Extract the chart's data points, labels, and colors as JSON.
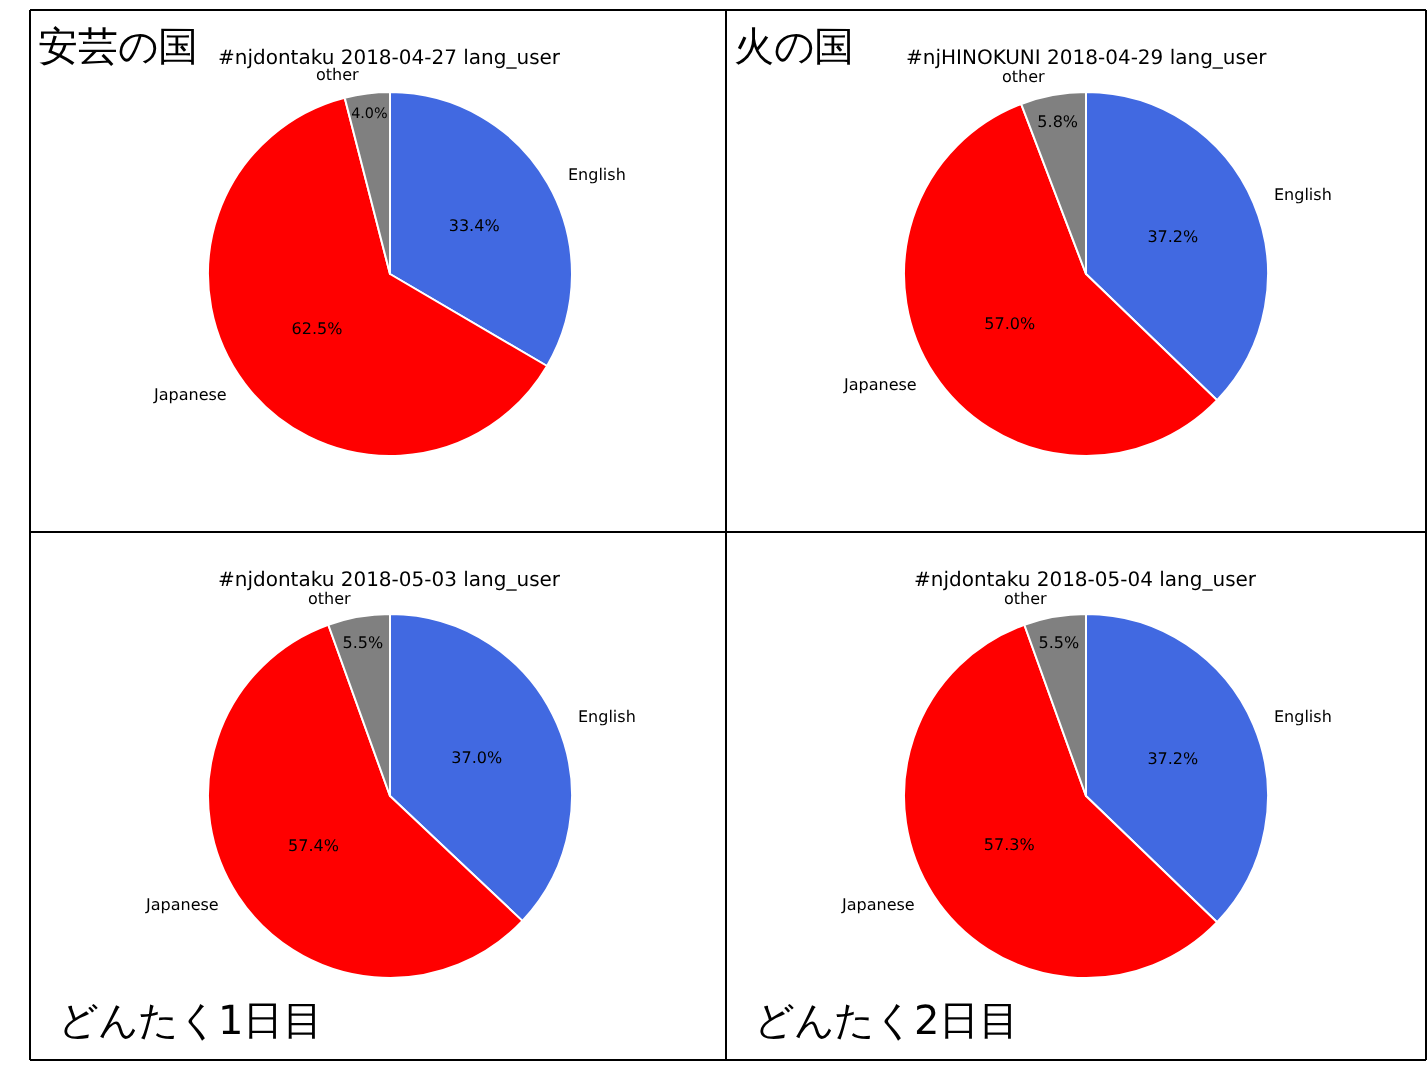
{
  "chart_data": [
    {
      "type": "pie",
      "title": "#njdontaku 2018-04-27 lang_user",
      "categories": [
        "English",
        "Japanese",
        "other"
      ],
      "values": [
        33.4,
        62.5,
        4.0
      ],
      "colors": [
        "#4169e1",
        "#ff0000",
        "#808080"
      ],
      "value_labels": [
        "33.4%",
        "62.5%",
        "4.0%"
      ],
      "annotations": [
        "安芸の国"
      ]
    },
    {
      "type": "pie",
      "title": "#njHINOKUNI 2018-04-29 lang_user",
      "categories": [
        "English",
        "Japanese",
        "other"
      ],
      "values": [
        37.2,
        57.0,
        5.8
      ],
      "colors": [
        "#4169e1",
        "#ff0000",
        "#808080"
      ],
      "value_labels": [
        "37.2%",
        "57.0%",
        "5.8%"
      ],
      "annotations": [
        "火の国"
      ]
    },
    {
      "type": "pie",
      "title": "#njdontaku 2018-05-03 lang_user",
      "categories": [
        "English",
        "Japanese",
        "other"
      ],
      "values": [
        37.0,
        57.4,
        5.5
      ],
      "colors": [
        "#4169e1",
        "#ff0000",
        "#808080"
      ],
      "value_labels": [
        "37.0%",
        "57.4%",
        "5.5%"
      ],
      "annotations": [
        "どんたく1日目"
      ]
    },
    {
      "type": "pie",
      "title": "#njdontaku 2018-05-04 lang_user",
      "categories": [
        "English",
        "Japanese",
        "other"
      ],
      "values": [
        37.2,
        57.3,
        5.5
      ],
      "colors": [
        "#4169e1",
        "#ff0000",
        "#808080"
      ],
      "value_labels": [
        "37.2%",
        "57.3%",
        "5.5%"
      ],
      "annotations": [
        "どんたく2日目"
      ]
    }
  ]
}
